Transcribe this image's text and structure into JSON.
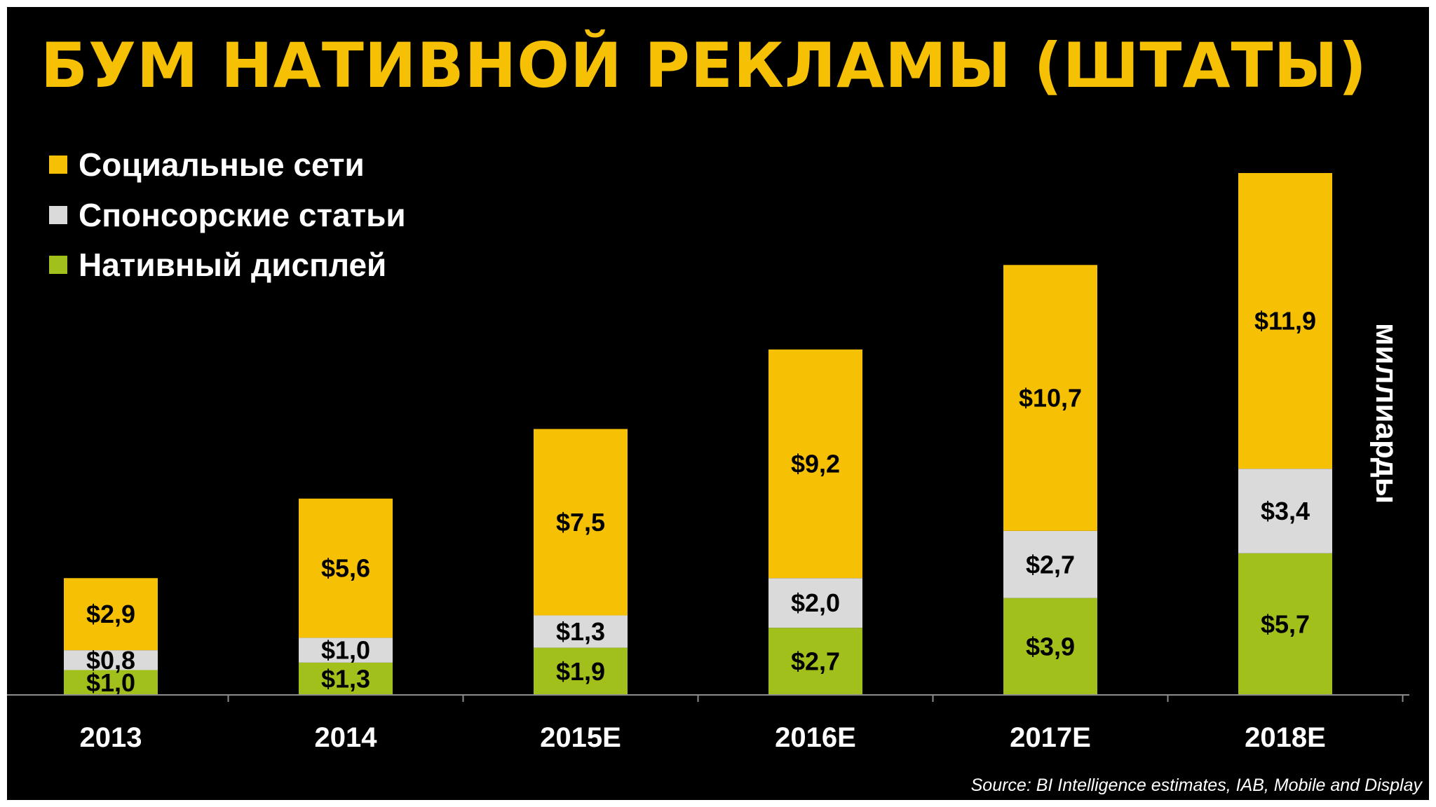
{
  "title": "БУМ НАТИВНОЙ РЕКЛАМЫ (ШТАТЫ)",
  "unit_label": "миллиарды",
  "source": "Source: BI Intelligence estimates, IAB, Mobile and Display",
  "colors": {
    "background": "#000000",
    "social": "#F6C105",
    "sponsored": "#DADADA",
    "display": "#A1C01B",
    "title": "#F6C105",
    "text": "#FFFFFF",
    "value_text": "#000000"
  },
  "chart_data": {
    "type": "bar",
    "stacked": true,
    "title": "БУМ НАТИВНОЙ РЕКЛАМЫ (ШТАТЫ)",
    "categories": [
      "2013",
      "2014",
      "2015E",
      "2016E",
      "2017E",
      "2018E"
    ],
    "series": [
      {
        "name": "Нативный дисплей",
        "color": "#A1C01B",
        "values": [
          1.0,
          1.3,
          1.9,
          2.7,
          3.9,
          5.7
        ],
        "labels": [
          "$1,0",
          "$1,3",
          "$1,9",
          "$2,7",
          "$3,9",
          "$5,7"
        ]
      },
      {
        "name": "Спонсорские статьи",
        "color": "#DADADA",
        "values": [
          0.8,
          1.0,
          1.3,
          2.0,
          2.7,
          3.4
        ],
        "labels": [
          "$0,8",
          "$1,0",
          "$1,3",
          "$2,0",
          "$2,7",
          "$3,4"
        ]
      },
      {
        "name": "Социальные сети",
        "color": "#F6C105",
        "values": [
          2.9,
          5.6,
          7.5,
          9.2,
          10.7,
          11.9
        ],
        "labels": [
          "$2,9",
          "$5,6",
          "$7,5",
          "$9,2",
          "$10,7",
          "$11,9"
        ]
      }
    ],
    "legend": {
      "placement": "top-left",
      "order": [
        "Социальные сети",
        "Спонсорские статьи",
        "Нативный дисплей"
      ]
    },
    "ylabel": "миллиарды",
    "ylim": [
      0,
      21
    ],
    "grid": false
  }
}
